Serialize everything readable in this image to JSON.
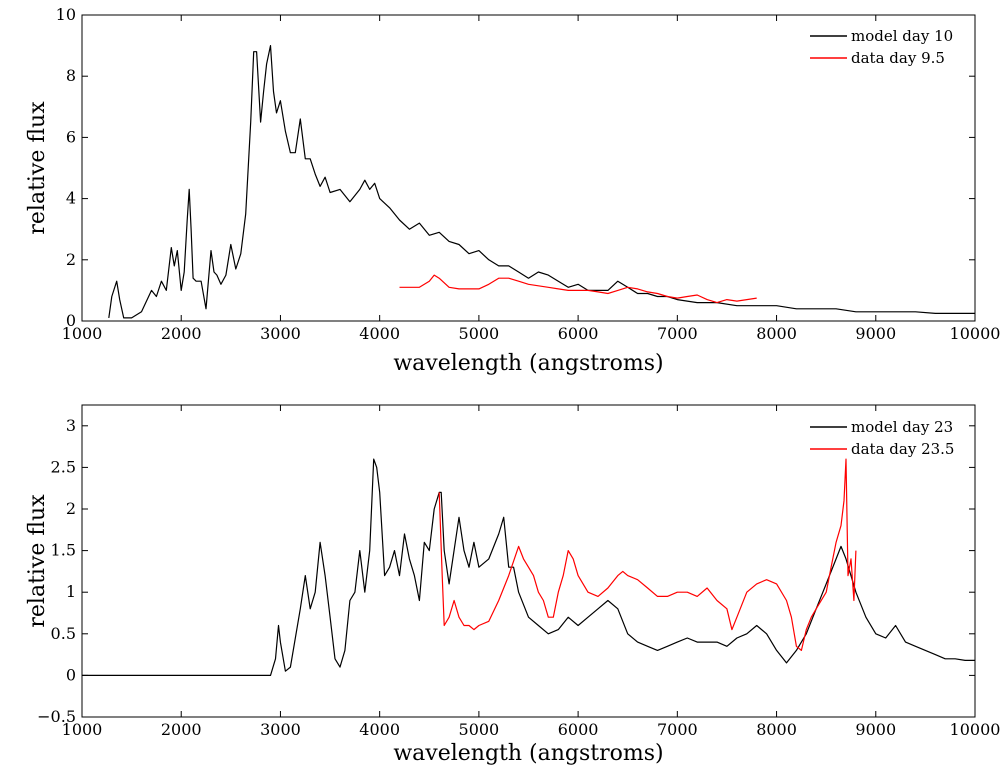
{
  "chart_data": [
    {
      "type": "line",
      "xlabel": "wavelength (angstroms)",
      "ylabel": "relative flux",
      "xlim": [
        1000,
        10000
      ],
      "ylim": [
        0,
        10
      ],
      "x_ticks": [
        1000,
        2000,
        3000,
        4000,
        5000,
        6000,
        7000,
        8000,
        9000,
        10000
      ],
      "y_ticks": [
        0,
        2,
        4,
        6,
        8,
        10
      ],
      "x_tick_labels": [
        "1000",
        "2000",
        "3000",
        "4000",
        "5000",
        "6000",
        "7000",
        "8000",
        "9000",
        "10000"
      ],
      "y_tick_labels": [
        "0",
        "2",
        "4",
        "6",
        "8",
        "10"
      ],
      "legend": "top-right",
      "grid": false,
      "series": [
        {
          "name": "model day 10",
          "color": "#000000",
          "x": [
            1270,
            1300,
            1350,
            1380,
            1420,
            1500,
            1600,
            1700,
            1750,
            1800,
            1850,
            1900,
            1930,
            1960,
            2000,
            2030,
            2060,
            2080,
            2100,
            2120,
            2150,
            2200,
            2250,
            2300,
            2330,
            2360,
            2400,
            2450,
            2500,
            2550,
            2600,
            2650,
            2700,
            2730,
            2760,
            2800,
            2830,
            2860,
            2900,
            2930,
            2960,
            3000,
            3050,
            3100,
            3150,
            3200,
            3250,
            3300,
            3350,
            3400,
            3450,
            3500,
            3600,
            3700,
            3800,
            3850,
            3900,
            3950,
            4000,
            4100,
            4200,
            4300,
            4400,
            4500,
            4600,
            4700,
            4800,
            4900,
            5000,
            5100,
            5200,
            5300,
            5400,
            5500,
            5600,
            5700,
            5800,
            5900,
            6000,
            6100,
            6200,
            6300,
            6400,
            6500,
            6600,
            6700,
            6800,
            6900,
            7000,
            7200,
            7400,
            7600,
            7800,
            8000,
            8200,
            8400,
            8600,
            8800,
            9000,
            9200,
            9400,
            9600,
            9800,
            10000
          ],
          "y": [
            0.1,
            0.8,
            1.3,
            0.7,
            0.1,
            0.1,
            0.3,
            1.0,
            0.8,
            1.3,
            1.0,
            2.4,
            1.8,
            2.3,
            1.0,
            1.6,
            3.3,
            4.3,
            3.0,
            1.4,
            1.3,
            1.3,
            0.4,
            2.3,
            1.6,
            1.5,
            1.2,
            1.5,
            2.5,
            1.7,
            2.2,
            3.5,
            6.5,
            8.8,
            8.8,
            6.5,
            7.5,
            8.4,
            9.0,
            7.5,
            6.8,
            7.2,
            6.2,
            5.5,
            5.5,
            6.6,
            5.3,
            5.3,
            4.8,
            4.4,
            4.7,
            4.2,
            4.3,
            3.9,
            4.3,
            4.6,
            4.3,
            4.5,
            4.0,
            3.7,
            3.3,
            3.0,
            3.2,
            2.8,
            2.9,
            2.6,
            2.5,
            2.2,
            2.3,
            2.0,
            1.8,
            1.8,
            1.6,
            1.4,
            1.6,
            1.5,
            1.3,
            1.1,
            1.2,
            1.0,
            1.0,
            1.0,
            1.3,
            1.1,
            0.9,
            0.9,
            0.8,
            0.8,
            0.7,
            0.6,
            0.6,
            0.5,
            0.5,
            0.5,
            0.4,
            0.4,
            0.4,
            0.3,
            0.3,
            0.3,
            0.3,
            0.25,
            0.25,
            0.25
          ]
        },
        {
          "name": "data day 9.5",
          "color": "#ff0000",
          "x": [
            4200,
            4300,
            4400,
            4500,
            4550,
            4600,
            4700,
            4800,
            4900,
            5000,
            5100,
            5200,
            5300,
            5400,
            5500,
            5600,
            5700,
            5800,
            5900,
            6000,
            6100,
            6200,
            6300,
            6400,
            6500,
            6600,
            6700,
            6800,
            6900,
            7000,
            7100,
            7200,
            7300,
            7400,
            7500,
            7600,
            7700,
            7800
          ],
          "y": [
            1.1,
            1.1,
            1.1,
            1.3,
            1.5,
            1.4,
            1.1,
            1.05,
            1.05,
            1.05,
            1.2,
            1.4,
            1.4,
            1.3,
            1.2,
            1.15,
            1.1,
            1.05,
            1.0,
            1.0,
            1.0,
            0.95,
            0.9,
            1.0,
            1.1,
            1.05,
            0.95,
            0.9,
            0.8,
            0.75,
            0.8,
            0.85,
            0.7,
            0.6,
            0.7,
            0.65,
            0.7,
            0.75
          ]
        }
      ]
    },
    {
      "type": "line",
      "xlabel": "wavelength (angstroms)",
      "ylabel": "relative flux",
      "xlim": [
        1000,
        10000
      ],
      "ylim": [
        -0.5,
        3.25
      ],
      "x_ticks": [
        1000,
        2000,
        3000,
        4000,
        5000,
        6000,
        7000,
        8000,
        9000,
        10000
      ],
      "y_ticks": [
        -0.5,
        0,
        0.5,
        1,
        1.5,
        2,
        2.5,
        3
      ],
      "x_tick_labels": [
        "1000",
        "2000",
        "3000",
        "4000",
        "5000",
        "6000",
        "7000",
        "8000",
        "9000",
        "10000"
      ],
      "y_tick_labels": [
        "−0.5",
        "0",
        "0.5",
        "1",
        "1.5",
        "2",
        "2.5",
        "3"
      ],
      "legend": "top-right",
      "grid": false,
      "series": [
        {
          "name": "model day 23",
          "color": "#000000",
          "x": [
            1000,
            2000,
            2900,
            2950,
            2980,
            3000,
            3050,
            3100,
            3200,
            3250,
            3300,
            3350,
            3400,
            3450,
            3500,
            3550,
            3600,
            3650,
            3700,
            3750,
            3800,
            3850,
            3900,
            3940,
            3970,
            4000,
            4050,
            4100,
            4150,
            4200,
            4250,
            4300,
            4350,
            4400,
            4450,
            4500,
            4550,
            4600,
            4620,
            4650,
            4700,
            4800,
            4850,
            4900,
            4950,
            5000,
            5100,
            5200,
            5250,
            5300,
            5350,
            5400,
            5500,
            5600,
            5700,
            5800,
            5900,
            6000,
            6100,
            6200,
            6300,
            6400,
            6500,
            6600,
            6700,
            6800,
            6900,
            7000,
            7100,
            7200,
            7300,
            7400,
            7500,
            7600,
            7700,
            7800,
            7900,
            8000,
            8100,
            8200,
            8300,
            8400,
            8500,
            8600,
            8650,
            8700,
            8800,
            8900,
            9000,
            9100,
            9200,
            9300,
            9400,
            9500,
            9600,
            9700,
            9800,
            9900,
            10000
          ],
          "y": [
            0.0,
            0.0,
            0.0,
            0.2,
            0.6,
            0.4,
            0.05,
            0.1,
            0.8,
            1.2,
            0.8,
            1.0,
            1.6,
            1.2,
            0.7,
            0.2,
            0.1,
            0.3,
            0.9,
            1.0,
            1.5,
            1.0,
            1.5,
            2.6,
            2.5,
            2.2,
            1.2,
            1.3,
            1.5,
            1.2,
            1.7,
            1.4,
            1.2,
            0.9,
            1.6,
            1.5,
            2.0,
            2.2,
            2.2,
            1.5,
            1.1,
            1.9,
            1.5,
            1.3,
            1.6,
            1.3,
            1.4,
            1.7,
            1.9,
            1.3,
            1.3,
            1.0,
            0.7,
            0.6,
            0.5,
            0.55,
            0.7,
            0.6,
            0.7,
            0.8,
            0.9,
            0.8,
            0.5,
            0.4,
            0.35,
            0.3,
            0.35,
            0.4,
            0.45,
            0.4,
            0.4,
            0.4,
            0.35,
            0.45,
            0.5,
            0.6,
            0.5,
            0.3,
            0.15,
            0.3,
            0.5,
            0.8,
            1.1,
            1.4,
            1.55,
            1.4,
            1.0,
            0.7,
            0.5,
            0.45,
            0.6,
            0.4,
            0.35,
            0.3,
            0.25,
            0.2,
            0.2,
            0.18,
            0.18
          ]
        },
        {
          "name": "data day 23.5",
          "color": "#ff0000",
          "x": [
            4600,
            4630,
            4650,
            4700,
            4750,
            4800,
            4850,
            4900,
            4950,
            5000,
            5100,
            5200,
            5300,
            5400,
            5450,
            5500,
            5550,
            5600,
            5650,
            5700,
            5750,
            5800,
            5850,
            5900,
            5950,
            6000,
            6100,
            6200,
            6300,
            6400,
            6450,
            6500,
            6600,
            6700,
            6800,
            6900,
            7000,
            7100,
            7200,
            7300,
            7400,
            7500,
            7550,
            7600,
            7700,
            7800,
            7900,
            8000,
            8100,
            8150,
            8200,
            8250,
            8300,
            8350,
            8400,
            8500,
            8550,
            8600,
            8650,
            8680,
            8700,
            8720,
            8750,
            8780,
            8800
          ],
          "y": [
            2.2,
            1.2,
            0.6,
            0.7,
            0.9,
            0.7,
            0.6,
            0.6,
            0.55,
            0.6,
            0.65,
            0.9,
            1.2,
            1.55,
            1.4,
            1.3,
            1.2,
            1.0,
            0.9,
            0.7,
            0.7,
            1.0,
            1.2,
            1.5,
            1.4,
            1.2,
            1.0,
            0.95,
            1.05,
            1.2,
            1.25,
            1.2,
            1.15,
            1.05,
            0.95,
            0.95,
            1.0,
            1.0,
            0.95,
            1.05,
            0.9,
            0.8,
            0.55,
            0.7,
            1.0,
            1.1,
            1.15,
            1.1,
            0.9,
            0.7,
            0.35,
            0.3,
            0.55,
            0.7,
            0.8,
            1.0,
            1.3,
            1.6,
            1.8,
            2.1,
            2.6,
            1.2,
            1.4,
            0.9,
            1.5
          ]
        }
      ]
    }
  ]
}
